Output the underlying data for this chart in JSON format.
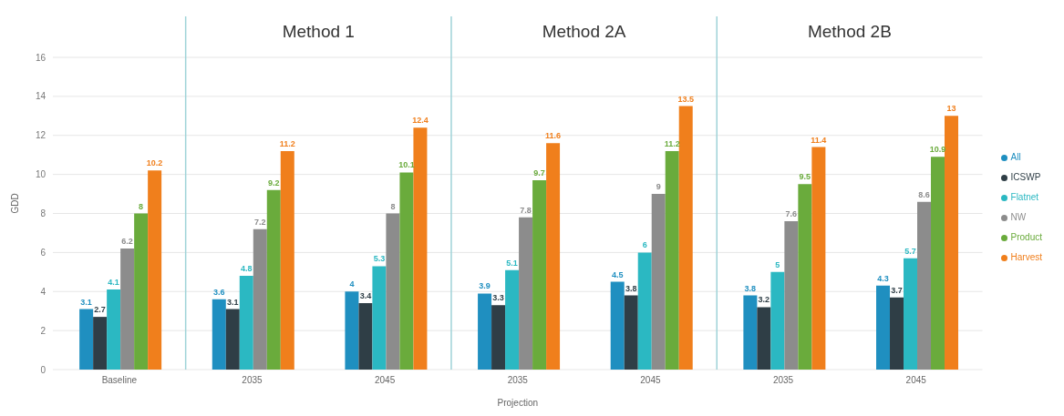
{
  "chart_data": {
    "type": "bar",
    "categories": [
      "Baseline",
      "2035",
      "2045",
      "2035",
      "2045",
      "2035",
      "2045"
    ],
    "xlabel": "Projection",
    "ylabel": "GDD",
    "ylim": [
      0,
      16
    ],
    "yticks": [
      0,
      2,
      4,
      6,
      8,
      10,
      12,
      14,
      16
    ],
    "grid": "y",
    "data_labels": true,
    "legend": "right",
    "annotations": [
      "Method 1",
      "Method 2A",
      "Method 2B"
    ],
    "series": [
      {
        "name": "All",
        "color": "#1f8fc0",
        "values": [
          3.1,
          3.6,
          4.0,
          3.9,
          4.5,
          3.8,
          4.3
        ]
      },
      {
        "name": "ICSWP",
        "color": "#2f3e46",
        "values": [
          2.7,
          3.1,
          3.4,
          3.3,
          3.8,
          3.2,
          3.7
        ]
      },
      {
        "name": "Flatnet",
        "color": "#2bb8c2",
        "values": [
          4.1,
          4.8,
          5.3,
          5.1,
          6.0,
          5.0,
          5.7
        ]
      },
      {
        "name": "NW",
        "color": "#8c8c8c",
        "values": [
          6.2,
          7.2,
          8.0,
          7.8,
          9.0,
          7.6,
          8.6
        ]
      },
      {
        "name": "Product",
        "color": "#6aab3c",
        "values": [
          8.0,
          9.2,
          10.1,
          9.7,
          11.2,
          9.5,
          10.9
        ]
      },
      {
        "name": "Harvest",
        "color": "#f07f1c",
        "values": [
          10.2,
          11.2,
          12.4,
          11.6,
          13.5,
          11.4,
          13.0
        ]
      }
    ]
  }
}
